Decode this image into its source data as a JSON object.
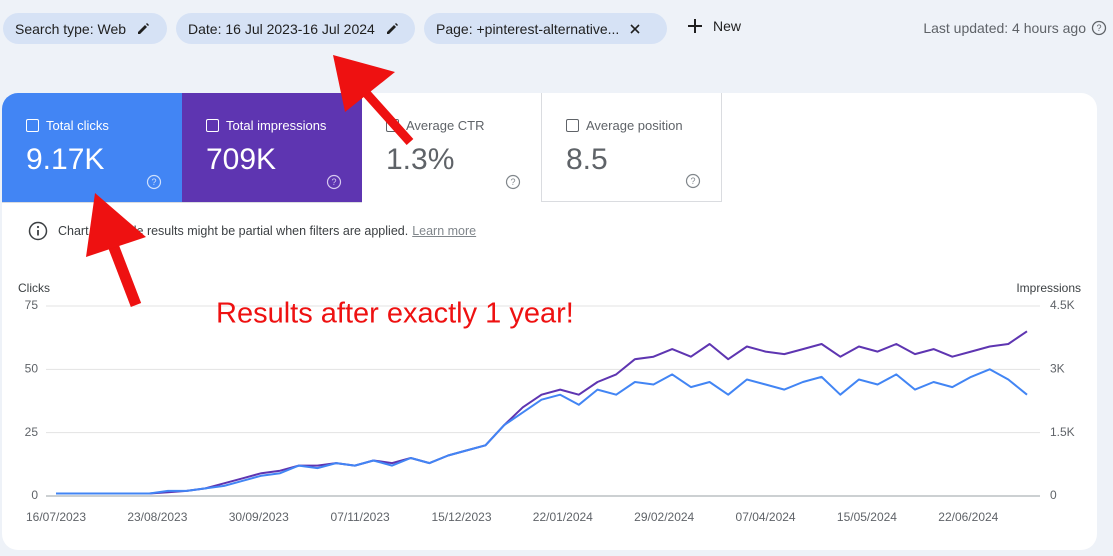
{
  "filters": [
    {
      "label": "Search type: Web"
    },
    {
      "label": "Date: 16 Jul 2023-16 Jul 2024"
    },
    {
      "label": "Page: +pinterest-alternative..."
    }
  ],
  "new_button": "New",
  "last_updated": "Last updated: 4 hours ago",
  "metrics": [
    {
      "value": "9.17K"
    },
    {
      "value": "709K"
    },
    {
      "label": "Average CTR",
      "value": "1.3%"
    },
    {
      "label": "Average position",
      "value": "8.5"
    }
  ],
  "notice": "Chart and table results might be partial when filters are applied.",
  "learn_more": "Learn more",
  "chart_data": {
    "type": "line",
    "annotation": "Results after exactly 1 year!",
    "y_label": "Clicks",
    "y2_label": "Impressions",
    "x": [
      "16/07/2023",
      "23/07/2023",
      "30/07/2023",
      "06/08/2023",
      "13/08/2023",
      "20/08/2023",
      "27/08/2023",
      "03/09/2023",
      "10/09/2023",
      "17/09/2023",
      "24/09/2023",
      "01/10/2023",
      "08/10/2023",
      "15/10/2023",
      "22/10/2023",
      "29/10/2023",
      "05/11/2023",
      "12/11/2023",
      "19/11/2023",
      "26/11/2023",
      "03/12/2023",
      "10/12/2023",
      "17/12/2023",
      "24/12/2023",
      "31/12/2023",
      "07/01/2024",
      "14/01/2024",
      "21/01/2024",
      "28/01/2024",
      "04/02/2024",
      "11/02/2024",
      "18/02/2024",
      "25/02/2024",
      "03/03/2024",
      "10/03/2024",
      "17/03/2024",
      "24/03/2024",
      "31/03/2024",
      "07/04/2024",
      "14/04/2024",
      "21/04/2024",
      "28/04/2024",
      "05/05/2024",
      "12/05/2024",
      "19/05/2024",
      "26/05/2024",
      "02/06/2024",
      "09/06/2024",
      "16/06/2024",
      "23/06/2024",
      "30/06/2024",
      "07/07/2024",
      "14/07/2024"
    ],
    "xticks": [
      "16/07/2023",
      "23/08/2023",
      "30/09/2023",
      "07/11/2023",
      "15/12/2023",
      "22/01/2024",
      "29/02/2024",
      "07/04/2024",
      "15/05/2024",
      "22/06/2024"
    ],
    "ylim": [
      0,
      75
    ],
    "yticks": [
      0,
      25,
      50,
      75
    ],
    "y2lim": [
      0,
      4500
    ],
    "y2ticks": [
      0,
      {
        "value": 1500,
        "label": "1.5K"
      },
      {
        "value": 3000,
        "label": "3K"
      },
      {
        "value": 4500,
        "label": "4.5K"
      }
    ],
    "grid": true,
    "series": [
      {
        "name": "Total clicks",
        "color": "#4285f4",
        "values": [
          1,
          1,
          1,
          1,
          1,
          1,
          2,
          2,
          3,
          4,
          6,
          8,
          9,
          12,
          11,
          13,
          12,
          14,
          12,
          15,
          13,
          16,
          18,
          20,
          28,
          33,
          38,
          40,
          36,
          42,
          40,
          45,
          44,
          48,
          43,
          45,
          40,
          46,
          44,
          42,
          45,
          47,
          40,
          46,
          44,
          48,
          42,
          45,
          43,
          47,
          50,
          46,
          40
        ]
      },
      {
        "name": "Total impressions",
        "color": "#5e35b1",
        "axis": "y2",
        "values": [
          60,
          60,
          60,
          60,
          60,
          60,
          90,
          120,
          180,
          300,
          420,
          540,
          600,
          720,
          720,
          780,
          720,
          840,
          780,
          900,
          780,
          960,
          1080,
          1200,
          1680,
          2100,
          2400,
          2520,
          2400,
          2700,
          2880,
          3240,
          3300,
          3480,
          3300,
          3600,
          3240,
          3540,
          3420,
          3360,
          3480,
          3600,
          3300,
          3540,
          3420,
          3600,
          3360,
          3480,
          3300,
          3420,
          3540,
          3600,
          3900
        ]
      }
    ]
  }
}
